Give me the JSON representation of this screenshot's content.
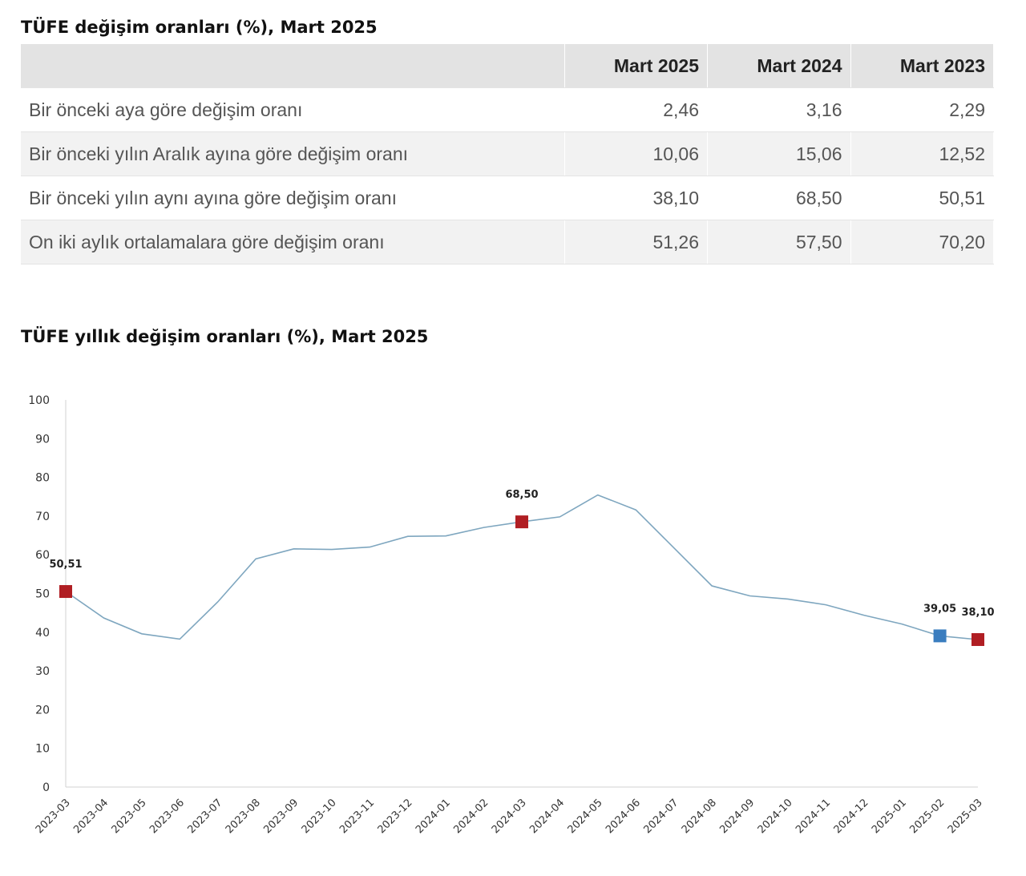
{
  "table": {
    "title": "TÜFE değişim oranları (%), Mart 2025",
    "headers": [
      "",
      "Mart 2025",
      "Mart 2024",
      "Mart 2023"
    ],
    "rows": [
      {
        "label": "Bir önceki aya göre değişim oranı",
        "values": [
          "2,46",
          "3,16",
          "2,29"
        ]
      },
      {
        "label": "Bir önceki yılın Aralık ayına göre değişim oranı",
        "values": [
          "10,06",
          "15,06",
          "12,52"
        ]
      },
      {
        "label": "Bir önceki yılın aynı ayına göre değişim oranı",
        "values": [
          "38,10",
          "68,50",
          "50,51"
        ]
      },
      {
        "label": "On iki aylık ortalamalara göre değişim oranı",
        "values": [
          "51,26",
          "57,50",
          "70,20"
        ]
      }
    ]
  },
  "chart_data": {
    "type": "line",
    "title": "TÜFE yıllık değişim oranları (%), Mart 2025",
    "xlabel": "",
    "ylabel": "",
    "ylim": [
      0,
      100
    ],
    "yticks": [
      0,
      10,
      20,
      30,
      40,
      50,
      60,
      70,
      80,
      90,
      100
    ],
    "grid": false,
    "line_color": "#7ea6bf",
    "categories": [
      "2023-03",
      "2023-04",
      "2023-05",
      "2023-06",
      "2023-07",
      "2023-08",
      "2023-09",
      "2023-10",
      "2023-11",
      "2023-12",
      "2024-01",
      "2024-02",
      "2024-03",
      "2024-04",
      "2024-05",
      "2024-06",
      "2024-07",
      "2024-08",
      "2024-09",
      "2024-10",
      "2024-11",
      "2024-12",
      "2025-01",
      "2025-02",
      "2025-03"
    ],
    "values": [
      50.51,
      43.68,
      39.59,
      38.21,
      47.83,
      58.94,
      61.53,
      61.36,
      61.98,
      64.77,
      64.86,
      67.07,
      68.5,
      69.8,
      75.45,
      71.6,
      61.78,
      51.97,
      49.38,
      48.58,
      47.09,
      44.38,
      42.12,
      39.05,
      38.1
    ],
    "highlights": [
      {
        "category": "2023-03",
        "label": "50,51",
        "color": "#b01e23"
      },
      {
        "category": "2024-03",
        "label": "68,50",
        "color": "#b01e23"
      },
      {
        "category": "2025-02",
        "label": "39,05",
        "color": "#3a7dbf"
      },
      {
        "category": "2025-03",
        "label": "38,10",
        "color": "#b01e23"
      }
    ]
  }
}
